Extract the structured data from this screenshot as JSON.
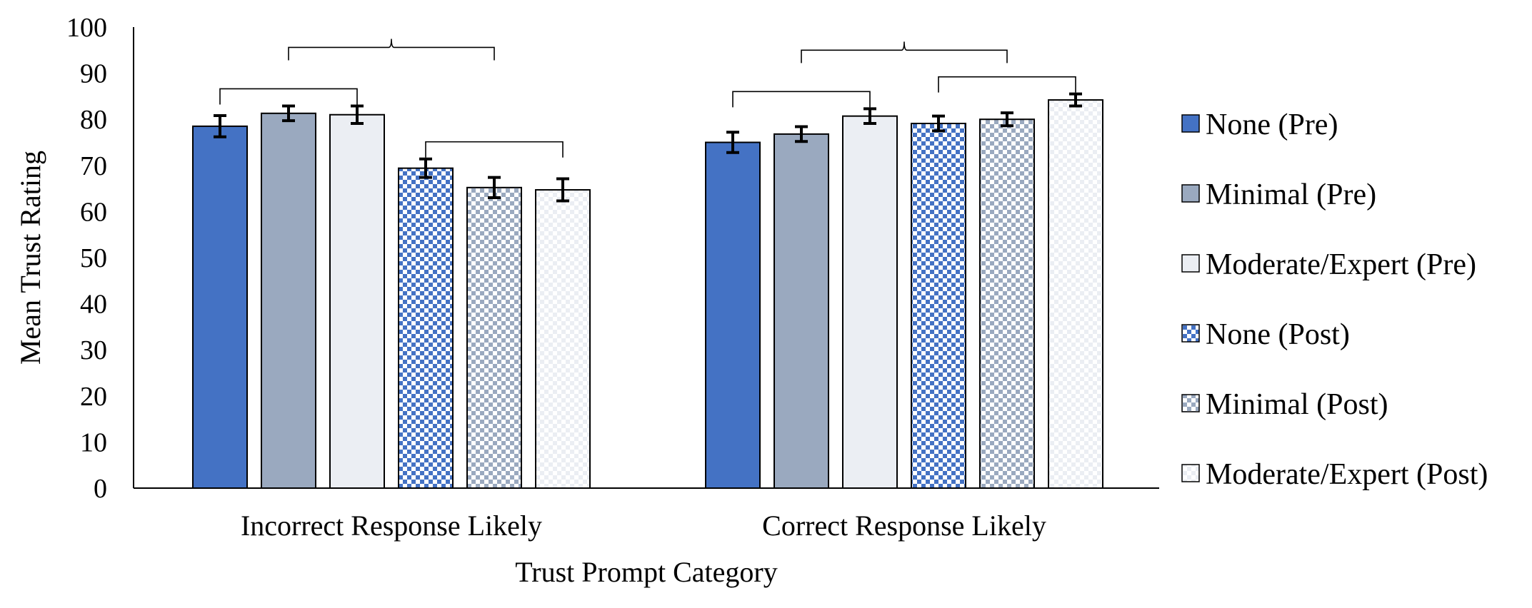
{
  "chart_data": {
    "type": "bar",
    "title": "",
    "xlabel": "Trust Prompt Category",
    "ylabel": "Mean Trust Rating",
    "ylim": [
      0,
      100
    ],
    "yticks": [
      "0",
      "10",
      "20",
      "30",
      "40",
      "50",
      "60",
      "70",
      "80",
      "90",
      "100"
    ],
    "grid": false,
    "legend_position": "right",
    "categories": [
      "Incorrect Response Likely",
      "Correct Response Likely"
    ],
    "series": [
      {
        "name": "None (Pre)",
        "values": [
          78.5,
          75.0
        ],
        "errors": [
          2.3,
          2.2
        ],
        "color": "#4472C4",
        "pattern": "solid"
      },
      {
        "name": "Minimal (Pre)",
        "values": [
          81.3,
          76.8
        ],
        "errors": [
          1.6,
          1.6
        ],
        "color": "#9AA9BF",
        "pattern": "solid"
      },
      {
        "name": "Moderate/Expert (Pre)",
        "values": [
          81.0,
          80.7
        ],
        "errors": [
          1.9,
          1.6
        ],
        "color": "#EBEEF3",
        "pattern": "solid"
      },
      {
        "name": "None (Post)",
        "values": [
          69.4,
          79.1
        ],
        "errors": [
          2.0,
          1.6
        ],
        "color": "#4472C4",
        "pattern": "checker"
      },
      {
        "name": "Minimal (Post)",
        "values": [
          65.2,
          80.0
        ],
        "errors": [
          2.2,
          1.4
        ],
        "color": "#9AA9BF",
        "pattern": "checker"
      },
      {
        "name": "Moderate/Expert (Post)",
        "values": [
          64.7,
          84.2
        ],
        "errors": [
          2.4,
          1.3
        ],
        "color": "#EBEEF3",
        "pattern": "checker"
      }
    ],
    "significance_brackets": [
      {
        "category": 0,
        "from": 0,
        "to": 2,
        "level": 1
      },
      {
        "category": 0,
        "from": 3,
        "to": 5,
        "level": 1
      },
      {
        "category": 0,
        "from": 1,
        "to": 4,
        "level": 2,
        "type": "brace"
      },
      {
        "category": 1,
        "from": 0,
        "to": 2,
        "level": 1
      },
      {
        "category": 1,
        "from": 3,
        "to": 5,
        "level": 1
      },
      {
        "category": 1,
        "from": 1,
        "to": 4,
        "level": 2,
        "type": "brace"
      }
    ]
  }
}
